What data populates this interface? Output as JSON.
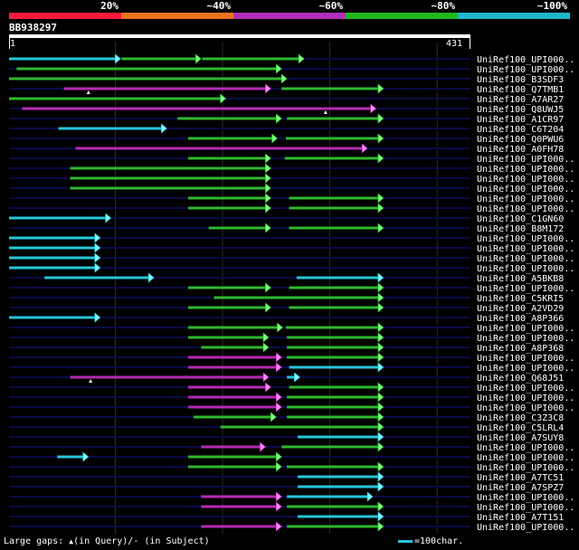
{
  "legend": {
    "labels": [
      "20%",
      "~40%",
      "~60%",
      "~80%",
      "~100%"
    ],
    "colors": [
      "#ff1a3c",
      "#e8741a",
      "#b02fb8",
      "#1eb81e",
      "#1fb7c9"
    ]
  },
  "query": {
    "id": "BB938297",
    "start": "1",
    "end": "431",
    "length": 431
  },
  "colors": {
    "background": "#000000",
    "track": "#0a0a4a",
    "gridline": "#2a2a2a",
    "cyan": "#26c6da",
    "green": "#2eb82e",
    "magenta": "#b52ab5",
    "arrowhead_green": "#7dff7d",
    "arrowhead_cyan": "#7ff7ff",
    "arrowhead_magenta": "#ff8aff"
  },
  "hits": [
    {
      "label": "UniRef100_UPI000..",
      "segs": [
        [
          "cyan",
          1,
          105
        ],
        [
          "green",
          106,
          180
        ],
        [
          "green",
          181,
          276
        ]
      ],
      "gaps": []
    },
    {
      "label": "UniRef100_UPI000..",
      "segs": [
        [
          "green",
          8,
          255
        ]
      ],
      "gaps": []
    },
    {
      "label": "UniRef100_B3SDF3",
      "segs": [
        [
          "green",
          1,
          260
        ]
      ],
      "gaps": []
    },
    {
      "label": "UniRef100_Q7TMB1",
      "segs": [
        [
          "magenta",
          52,
          245
        ],
        [
          "green",
          255,
          350
        ]
      ],
      "gaps": [
        {
          "pos": 75,
          "type": "query"
        }
      ]
    },
    {
      "label": "UniRef100_A7AR27",
      "segs": [
        [
          "green",
          1,
          203
        ]
      ],
      "gaps": []
    },
    {
      "label": "UniRef100_Q8UWJ5",
      "segs": [
        [
          "magenta",
          13,
          343
        ]
      ],
      "gaps": [
        {
          "pos": 296,
          "type": "query"
        }
      ]
    },
    {
      "label": "UniRef100_A1CR97",
      "segs": [
        [
          "green",
          158,
          255
        ],
        [
          "green",
          260,
          350
        ]
      ],
      "gaps": []
    },
    {
      "label": "UniRef100_C6T204",
      "segs": [
        [
          "cyan",
          47,
          148
        ]
      ],
      "gaps": []
    },
    {
      "label": "UniRef100_Q0PWU6",
      "segs": [
        [
          "green",
          168,
          251
        ],
        [
          "green",
          259,
          350
        ]
      ],
      "gaps": []
    },
    {
      "label": "UniRef100_A0FH78",
      "segs": [
        [
          "magenta",
          63,
          335
        ]
      ],
      "gaps": []
    },
    {
      "label": "UniRef100_UPI000..",
      "segs": [
        [
          "green",
          168,
          245
        ],
        [
          "green",
          258,
          350
        ]
      ],
      "gaps": []
    },
    {
      "label": "UniRef100_UPI000..",
      "segs": [
        [
          "green",
          58,
          245
        ]
      ],
      "gaps": []
    },
    {
      "label": "UniRef100_UPI000..",
      "segs": [
        [
          "green",
          58,
          245
        ]
      ],
      "gaps": []
    },
    {
      "label": "UniRef100_UPI000..",
      "segs": [
        [
          "green",
          58,
          245
        ]
      ],
      "gaps": []
    },
    {
      "label": "UniRef100_UPI000..",
      "segs": [
        [
          "green",
          168,
          245
        ],
        [
          "green",
          262,
          350
        ]
      ],
      "gaps": []
    },
    {
      "label": "UniRef100_UPI000..",
      "segs": [
        [
          "green",
          168,
          245
        ],
        [
          "green",
          262,
          350
        ]
      ],
      "gaps": []
    },
    {
      "label": "UniRef100_C1GN60",
      "segs": [
        [
          "cyan",
          1,
          96
        ]
      ],
      "gaps": []
    },
    {
      "label": "UniRef100_B8M172",
      "segs": [
        [
          "green",
          187,
          245
        ],
        [
          "green",
          262,
          350
        ]
      ],
      "gaps": []
    },
    {
      "label": "UniRef100_UPI000..",
      "segs": [
        [
          "cyan",
          1,
          86
        ]
      ],
      "gaps": []
    },
    {
      "label": "UniRef100_UPI000..",
      "segs": [
        [
          "cyan",
          1,
          86
        ]
      ],
      "gaps": []
    },
    {
      "label": "UniRef100_UPI000..",
      "segs": [
        [
          "cyan",
          1,
          86
        ]
      ],
      "gaps": []
    },
    {
      "label": "UniRef100_UPI000..",
      "segs": [
        [
          "cyan",
          1,
          86
        ]
      ],
      "gaps": []
    },
    {
      "label": "UniRef100_A5BKB8",
      "segs": [
        [
          "cyan",
          34,
          136
        ],
        [
          "cyan",
          269,
          350
        ]
      ],
      "gaps": []
    },
    {
      "label": "UniRef100_UPI000..",
      "segs": [
        [
          "green",
          168,
          245
        ],
        [
          "green",
          262,
          350
        ]
      ],
      "gaps": []
    },
    {
      "label": "UniRef100_C5KRI5",
      "segs": [
        [
          "green",
          192,
          350
        ]
      ],
      "gaps": []
    },
    {
      "label": "UniRef100_A2VD29",
      "segs": [
        [
          "green",
          168,
          245
        ],
        [
          "green",
          262,
          350
        ]
      ],
      "gaps": []
    },
    {
      "label": "UniRef100_A8P366",
      "segs": [
        [
          "cyan",
          1,
          86
        ]
      ],
      "gaps": []
    },
    {
      "label": "UniRef100_UPI000..",
      "segs": [
        [
          "green",
          168,
          256
        ],
        [
          "green",
          259,
          350
        ]
      ],
      "gaps": []
    },
    {
      "label": "UniRef100_UPI000..",
      "segs": [
        [
          "green",
          168,
          243
        ],
        [
          "green",
          260,
          350
        ]
      ],
      "gaps": []
    },
    {
      "label": "UniRef100_A8P368",
      "segs": [
        [
          "green",
          180,
          243
        ],
        [
          "green",
          260,
          350
        ]
      ],
      "gaps": []
    },
    {
      "label": "UniRef100_UPI000..",
      "segs": [
        [
          "magenta",
          168,
          255
        ],
        [
          "green",
          260,
          350
        ]
      ],
      "gaps": []
    },
    {
      "label": "UniRef100_UPI000..",
      "segs": [
        [
          "magenta",
          168,
          255
        ],
        [
          "cyan",
          262,
          350
        ]
      ],
      "gaps": []
    },
    {
      "label": "UniRef100_Q68J51",
      "segs": [
        [
          "magenta",
          58,
          243
        ],
        [
          "cyan",
          260,
          272
        ]
      ],
      "gaps": [
        {
          "pos": 77,
          "type": "query"
        }
      ]
    },
    {
      "label": "UniRef100_UPI000..",
      "segs": [
        [
          "magenta",
          168,
          245
        ],
        [
          "green",
          262,
          350
        ]
      ],
      "gaps": []
    },
    {
      "label": "UniRef100_UPI000..",
      "segs": [
        [
          "magenta",
          168,
          255
        ],
        [
          "green",
          260,
          350
        ]
      ],
      "gaps": []
    },
    {
      "label": "UniRef100_UPI000..",
      "segs": [
        [
          "magenta",
          168,
          255
        ],
        [
          "green",
          260,
          350
        ]
      ],
      "gaps": []
    },
    {
      "label": "UniRef100_C3Z3C8",
      "segs": [
        [
          "green",
          173,
          250
        ],
        [
          "green",
          260,
          350
        ]
      ],
      "gaps": []
    },
    {
      "label": "UniRef100_C5LRL4",
      "segs": [
        [
          "green",
          198,
          350
        ]
      ],
      "gaps": []
    },
    {
      "label": "UniRef100_A7SUY8",
      "segs": [
        [
          "cyan",
          270,
          350
        ]
      ],
      "gaps": []
    },
    {
      "label": "UniRef100_UPI000..",
      "segs": [
        [
          "magenta",
          180,
          240
        ],
        [
          "green",
          255,
          350
        ]
      ],
      "gaps": []
    },
    {
      "label": "UniRef100_UPI000..",
      "segs": [
        [
          "cyan",
          46,
          75
        ],
        [
          "green",
          168,
          255
        ]
      ],
      "gaps": []
    },
    {
      "label": "UniRef100_UPI000..",
      "segs": [
        [
          "green",
          168,
          255
        ],
        [
          "green",
          260,
          350
        ]
      ],
      "gaps": []
    },
    {
      "label": "UniRef100_A7TC51",
      "segs": [
        [
          "cyan",
          270,
          350
        ]
      ],
      "gaps": []
    },
    {
      "label": "UniRef100_A7SPZ7",
      "segs": [
        [
          "cyan",
          270,
          350
        ]
      ],
      "gaps": []
    },
    {
      "label": "UniRef100_UPI000..",
      "segs": [
        [
          "magenta",
          180,
          255
        ],
        [
          "cyan",
          260,
          340
        ]
      ],
      "gaps": []
    },
    {
      "label": "UniRef100_UPI000..",
      "segs": [
        [
          "magenta",
          180,
          255
        ],
        [
          "green",
          260,
          350
        ]
      ],
      "gaps": []
    },
    {
      "label": "UniRef100_A7T151",
      "segs": [
        [
          "cyan",
          270,
          350
        ]
      ],
      "gaps": []
    },
    {
      "label": "UniRef100_UPI000..",
      "segs": [
        [
          "magenta",
          180,
          255
        ],
        [
          "green",
          260,
          350
        ]
      ],
      "gaps": []
    }
  ],
  "footer": {
    "large_gaps": "Large gaps:",
    "in_query": "(in Query)/",
    "dash": "-",
    "in_subject": "(in Subject)",
    "scale_text": "=100char."
  }
}
